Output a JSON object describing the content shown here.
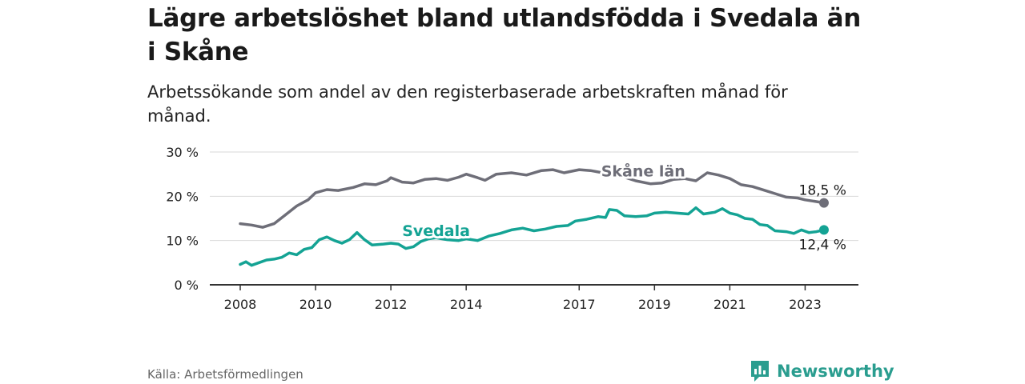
{
  "title": "Lägre arbetslöshet bland utlandsfödda i Svedala än i Skåne",
  "subtitle": "Arbetssökande som andel av den registerbaserade arbetskraften månad för månad.",
  "source": "Källa: Arbetsförmedlingen",
  "brand": "Newsworthy",
  "colors": {
    "skane": "#6e6e78",
    "svedala": "#14a394",
    "grid": "#d9d9d9",
    "axis": "#333333",
    "brand": "#2a9d8f"
  },
  "chart_data": {
    "type": "line",
    "xlim": [
      2008,
      2023.65
    ],
    "ylim": [
      0,
      30
    ],
    "yticks": [
      {
        "value": 0,
        "label": "0 %"
      },
      {
        "value": 10,
        "label": "10 %"
      },
      {
        "value": 20,
        "label": "20 %"
      },
      {
        "value": 30,
        "label": "30 %"
      }
    ],
    "xticks": [
      {
        "value": 2008,
        "label": "2008"
      },
      {
        "value": 2010,
        "label": "2010"
      },
      {
        "value": 2012,
        "label": "2012"
      },
      {
        "value": 2014,
        "label": "2014"
      },
      {
        "value": 2017,
        "label": "2017"
      },
      {
        "value": 2019,
        "label": "2019"
      },
      {
        "value": 2021,
        "label": "2021"
      },
      {
        "value": 2023,
        "label": "2023"
      }
    ],
    "series": [
      {
        "name": "Skåne län",
        "key": "skane",
        "end_label": "18,5 %",
        "points": [
          [
            2008.0,
            13.8
          ],
          [
            2008.3,
            13.5
          ],
          [
            2008.6,
            13.0
          ],
          [
            2008.9,
            13.8
          ],
          [
            2009.2,
            15.8
          ],
          [
            2009.5,
            17.8
          ],
          [
            2009.8,
            19.2
          ],
          [
            2010.0,
            20.8
          ],
          [
            2010.3,
            21.5
          ],
          [
            2010.6,
            21.3
          ],
          [
            2011.0,
            22.0
          ],
          [
            2011.3,
            22.8
          ],
          [
            2011.6,
            22.6
          ],
          [
            2011.9,
            23.5
          ],
          [
            2012.0,
            24.2
          ],
          [
            2012.3,
            23.2
          ],
          [
            2012.6,
            23.0
          ],
          [
            2012.9,
            23.8
          ],
          [
            2013.2,
            24.0
          ],
          [
            2013.5,
            23.6
          ],
          [
            2013.8,
            24.3
          ],
          [
            2014.0,
            25.0
          ],
          [
            2014.3,
            24.2
          ],
          [
            2014.5,
            23.6
          ],
          [
            2014.8,
            25.0
          ],
          [
            2015.2,
            25.3
          ],
          [
            2015.6,
            24.8
          ],
          [
            2016.0,
            25.8
          ],
          [
            2016.3,
            26.0
          ],
          [
            2016.6,
            25.3
          ],
          [
            2017.0,
            26.0
          ],
          [
            2017.3,
            25.8
          ],
          [
            2017.7,
            25.2
          ],
          [
            2018.1,
            24.6
          ],
          [
            2018.5,
            23.5
          ],
          [
            2018.9,
            22.8
          ],
          [
            2019.2,
            23.0
          ],
          [
            2019.5,
            23.8
          ],
          [
            2019.8,
            24.0
          ],
          [
            2020.1,
            23.5
          ],
          [
            2020.4,
            25.3
          ],
          [
            2020.7,
            24.8
          ],
          [
            2021.0,
            24.0
          ],
          [
            2021.3,
            22.6
          ],
          [
            2021.6,
            22.2
          ],
          [
            2021.9,
            21.4
          ],
          [
            2022.2,
            20.6
          ],
          [
            2022.5,
            19.8
          ],
          [
            2022.8,
            19.6
          ],
          [
            2023.0,
            19.2
          ],
          [
            2023.3,
            18.8
          ],
          [
            2023.5,
            18.5
          ]
        ]
      },
      {
        "name": "Svedala",
        "key": "svedala",
        "end_label": "12,4 %",
        "points": [
          [
            2008.0,
            4.6
          ],
          [
            2008.15,
            5.2
          ],
          [
            2008.3,
            4.4
          ],
          [
            2008.5,
            5.0
          ],
          [
            2008.7,
            5.6
          ],
          [
            2008.9,
            5.8
          ],
          [
            2009.1,
            6.2
          ],
          [
            2009.3,
            7.2
          ],
          [
            2009.5,
            6.8
          ],
          [
            2009.7,
            8.0
          ],
          [
            2009.9,
            8.4
          ],
          [
            2010.1,
            10.2
          ],
          [
            2010.3,
            10.8
          ],
          [
            2010.5,
            10.0
          ],
          [
            2010.7,
            9.4
          ],
          [
            2010.9,
            10.2
          ],
          [
            2011.1,
            11.8
          ],
          [
            2011.3,
            10.2
          ],
          [
            2011.5,
            9.0
          ],
          [
            2011.8,
            9.2
          ],
          [
            2012.0,
            9.4
          ],
          [
            2012.2,
            9.2
          ],
          [
            2012.4,
            8.2
          ],
          [
            2012.6,
            8.6
          ],
          [
            2012.8,
            9.8
          ],
          [
            2013.0,
            10.4
          ],
          [
            2013.2,
            10.6
          ],
          [
            2013.5,
            10.2
          ],
          [
            2013.8,
            10.0
          ],
          [
            2014.0,
            10.4
          ],
          [
            2014.3,
            10.0
          ],
          [
            2014.6,
            11.0
          ],
          [
            2014.9,
            11.6
          ],
          [
            2015.2,
            12.4
          ],
          [
            2015.5,
            12.8
          ],
          [
            2015.8,
            12.2
          ],
          [
            2016.1,
            12.6
          ],
          [
            2016.4,
            13.2
          ],
          [
            2016.7,
            13.4
          ],
          [
            2016.9,
            14.4
          ],
          [
            2017.2,
            14.8
          ],
          [
            2017.5,
            15.4
          ],
          [
            2017.7,
            15.2
          ],
          [
            2017.8,
            17.0
          ],
          [
            2018.0,
            16.8
          ],
          [
            2018.2,
            15.6
          ],
          [
            2018.5,
            15.4
          ],
          [
            2018.8,
            15.6
          ],
          [
            2019.0,
            16.2
          ],
          [
            2019.3,
            16.4
          ],
          [
            2019.6,
            16.2
          ],
          [
            2019.9,
            16.0
          ],
          [
            2020.1,
            17.4
          ],
          [
            2020.3,
            16.0
          ],
          [
            2020.6,
            16.4
          ],
          [
            2020.8,
            17.2
          ],
          [
            2021.0,
            16.2
          ],
          [
            2021.2,
            15.8
          ],
          [
            2021.4,
            15.0
          ],
          [
            2021.6,
            14.8
          ],
          [
            2021.8,
            13.6
          ],
          [
            2022.0,
            13.4
          ],
          [
            2022.2,
            12.2
          ],
          [
            2022.5,
            12.0
          ],
          [
            2022.7,
            11.6
          ],
          [
            2022.9,
            12.4
          ],
          [
            2023.1,
            11.8
          ],
          [
            2023.3,
            12.0
          ],
          [
            2023.5,
            12.4
          ]
        ]
      }
    ],
    "annotations": [
      {
        "series": "skane",
        "text": "Skåne län",
        "x": 2018.7,
        "y": 24.5
      },
      {
        "series": "svedala",
        "text": "Svedala",
        "x": 2013.2,
        "y": 11.0
      }
    ]
  }
}
